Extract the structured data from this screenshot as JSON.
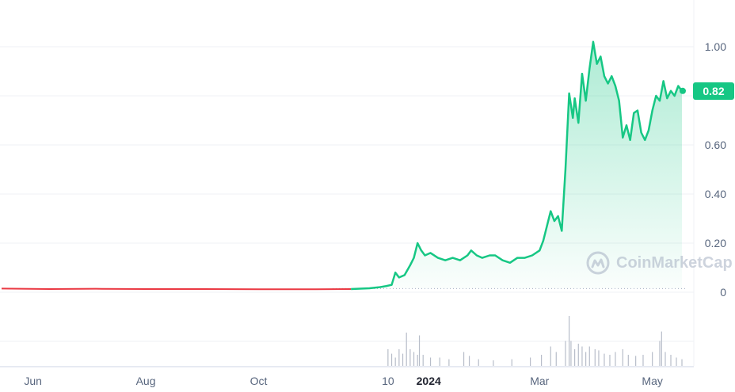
{
  "colors": {
    "up": "#16c784",
    "down": "#ea3943",
    "grid": "#eff2f5",
    "tick_text": "#58667e",
    "watermark": "#a6b0c3"
  },
  "watermark": {
    "text": "CoinMarketCap",
    "icon": "coinmarketcap-logo-icon"
  },
  "price_badge": {
    "label": "0.82"
  },
  "chart_data": [
    {
      "type": "area",
      "x_scale": "time",
      "x_range": [
        "2023-05-15",
        "2024-05-20"
      ],
      "ylim": [
        0,
        1.1
      ],
      "grid": true,
      "baseline": 0.015,
      "last_value": 0.82,
      "y_ticks": [
        {
          "value": 0,
          "label": "0"
        },
        {
          "value": 0.2,
          "label": "0.20"
        },
        {
          "value": 0.4,
          "label": "0.40"
        },
        {
          "value": 0.6,
          "label": "0.60"
        },
        {
          "value": 1.0,
          "label": "1.00"
        }
      ],
      "x_ticks": [
        {
          "date": "2023-06-01",
          "label": "Jun",
          "bold": false
        },
        {
          "date": "2023-08-01",
          "label": "Aug",
          "bold": false
        },
        {
          "date": "2023-10-01",
          "label": "Oct",
          "bold": false
        },
        {
          "date": "2023-12-10",
          "label": "10",
          "bold": false
        },
        {
          "date": "2024-01-01",
          "label": "2024",
          "bold": true
        },
        {
          "date": "2024-03-01",
          "label": "Mar",
          "bold": false
        },
        {
          "date": "2024-05-01",
          "label": "May",
          "bold": false
        }
      ],
      "series": [
        {
          "points": [
            [
              "2023-05-15",
              0.015
            ],
            [
              "2023-06-10",
              0.013
            ],
            [
              "2023-07-05",
              0.014
            ],
            [
              "2023-08-01",
              0.013
            ],
            [
              "2023-09-01",
              0.013
            ],
            [
              "2023-10-01",
              0.012
            ],
            [
              "2023-11-01",
              0.012
            ],
            [
              "2023-11-20",
              0.013
            ],
            [
              "2023-11-30",
              0.016
            ],
            [
              "2023-12-05",
              0.02
            ],
            [
              "2023-12-09",
              0.025
            ],
            [
              "2023-12-12",
              0.03
            ],
            [
              "2023-12-14",
              0.08
            ],
            [
              "2023-12-16",
              0.06
            ],
            [
              "2023-12-19",
              0.07
            ],
            [
              "2023-12-22",
              0.11
            ],
            [
              "2023-12-24",
              0.14
            ],
            [
              "2023-12-26",
              0.2
            ],
            [
              "2023-12-28",
              0.17
            ],
            [
              "2023-12-30",
              0.15
            ],
            [
              "2024-01-02",
              0.16
            ],
            [
              "2024-01-06",
              0.14
            ],
            [
              "2024-01-10",
              0.13
            ],
            [
              "2024-01-14",
              0.14
            ],
            [
              "2024-01-18",
              0.13
            ],
            [
              "2024-01-22",
              0.15
            ],
            [
              "2024-01-24",
              0.17
            ],
            [
              "2024-01-27",
              0.15
            ],
            [
              "2024-01-30",
              0.14
            ],
            [
              "2024-02-03",
              0.15
            ],
            [
              "2024-02-06",
              0.15
            ],
            [
              "2024-02-10",
              0.13
            ],
            [
              "2024-02-14",
              0.12
            ],
            [
              "2024-02-18",
              0.14
            ],
            [
              "2024-02-22",
              0.14
            ],
            [
              "2024-02-26",
              0.15
            ],
            [
              "2024-03-01",
              0.17
            ],
            [
              "2024-03-03",
              0.21
            ],
            [
              "2024-03-05",
              0.27
            ],
            [
              "2024-03-07",
              0.33
            ],
            [
              "2024-03-09",
              0.29
            ],
            [
              "2024-03-11",
              0.31
            ],
            [
              "2024-03-13",
              0.25
            ],
            [
              "2024-03-15",
              0.5
            ],
            [
              "2024-03-17",
              0.81
            ],
            [
              "2024-03-19",
              0.71
            ],
            [
              "2024-03-20",
              0.79
            ],
            [
              "2024-03-22",
              0.69
            ],
            [
              "2024-03-24",
              0.89
            ],
            [
              "2024-03-26",
              0.78
            ],
            [
              "2024-03-28",
              0.91
            ],
            [
              "2024-03-30",
              1.02
            ],
            [
              "2024-04-01",
              0.93
            ],
            [
              "2024-04-03",
              0.96
            ],
            [
              "2024-04-05",
              0.88
            ],
            [
              "2024-04-07",
              0.85
            ],
            [
              "2024-04-09",
              0.88
            ],
            [
              "2024-04-11",
              0.84
            ],
            [
              "2024-04-13",
              0.78
            ],
            [
              "2024-04-15",
              0.63
            ],
            [
              "2024-04-17",
              0.68
            ],
            [
              "2024-04-19",
              0.62
            ],
            [
              "2024-04-21",
              0.73
            ],
            [
              "2024-04-23",
              0.74
            ],
            [
              "2024-04-25",
              0.65
            ],
            [
              "2024-04-27",
              0.62
            ],
            [
              "2024-04-29",
              0.66
            ],
            [
              "2024-05-01",
              0.74
            ],
            [
              "2024-05-03",
              0.8
            ],
            [
              "2024-05-05",
              0.78
            ],
            [
              "2024-05-07",
              0.86
            ],
            [
              "2024-05-09",
              0.79
            ],
            [
              "2024-05-11",
              0.82
            ],
            [
              "2024-05-13",
              0.8
            ],
            [
              "2024-05-15",
              0.84
            ],
            [
              "2024-05-17",
              0.82
            ]
          ]
        }
      ]
    },
    {
      "type": "bar",
      "x_scale": "time",
      "values": [
        [
          "2023-12-10",
          0.3
        ],
        [
          "2023-12-12",
          0.22
        ],
        [
          "2023-12-14",
          0.15
        ],
        [
          "2023-12-16",
          0.3
        ],
        [
          "2023-12-18",
          0.22
        ],
        [
          "2023-12-20",
          0.6
        ],
        [
          "2023-12-22",
          0.3
        ],
        [
          "2023-12-24",
          0.25
        ],
        [
          "2023-12-26",
          0.2
        ],
        [
          "2023-12-27",
          0.55
        ],
        [
          "2023-12-29",
          0.2
        ],
        [
          "2024-01-02",
          0.15
        ],
        [
          "2024-01-07",
          0.15
        ],
        [
          "2024-01-12",
          0.12
        ],
        [
          "2024-01-20",
          0.25
        ],
        [
          "2024-01-23",
          0.18
        ],
        [
          "2024-01-28",
          0.12
        ],
        [
          "2024-02-05",
          0.1
        ],
        [
          "2024-02-15",
          0.12
        ],
        [
          "2024-02-25",
          0.15
        ],
        [
          "2024-03-02",
          0.2
        ],
        [
          "2024-03-07",
          0.35
        ],
        [
          "2024-03-10",
          0.25
        ],
        [
          "2024-03-15",
          0.45
        ],
        [
          "2024-03-17",
          0.9
        ],
        [
          "2024-03-18",
          0.45
        ],
        [
          "2024-03-20",
          0.3
        ],
        [
          "2024-03-22",
          0.4
        ],
        [
          "2024-03-24",
          0.35
        ],
        [
          "2024-03-26",
          0.25
        ],
        [
          "2024-03-28",
          0.35
        ],
        [
          "2024-03-31",
          0.3
        ],
        [
          "2024-04-02",
          0.28
        ],
        [
          "2024-04-05",
          0.22
        ],
        [
          "2024-04-08",
          0.2
        ],
        [
          "2024-04-11",
          0.25
        ],
        [
          "2024-04-15",
          0.3
        ],
        [
          "2024-04-18",
          0.2
        ],
        [
          "2024-04-22",
          0.18
        ],
        [
          "2024-04-26",
          0.2
        ],
        [
          "2024-05-01",
          0.25
        ],
        [
          "2024-05-05",
          0.45
        ],
        [
          "2024-05-06",
          0.62
        ],
        [
          "2024-05-08",
          0.25
        ],
        [
          "2024-05-11",
          0.2
        ],
        [
          "2024-05-14",
          0.15
        ],
        [
          "2024-05-17",
          0.12
        ]
      ]
    }
  ]
}
